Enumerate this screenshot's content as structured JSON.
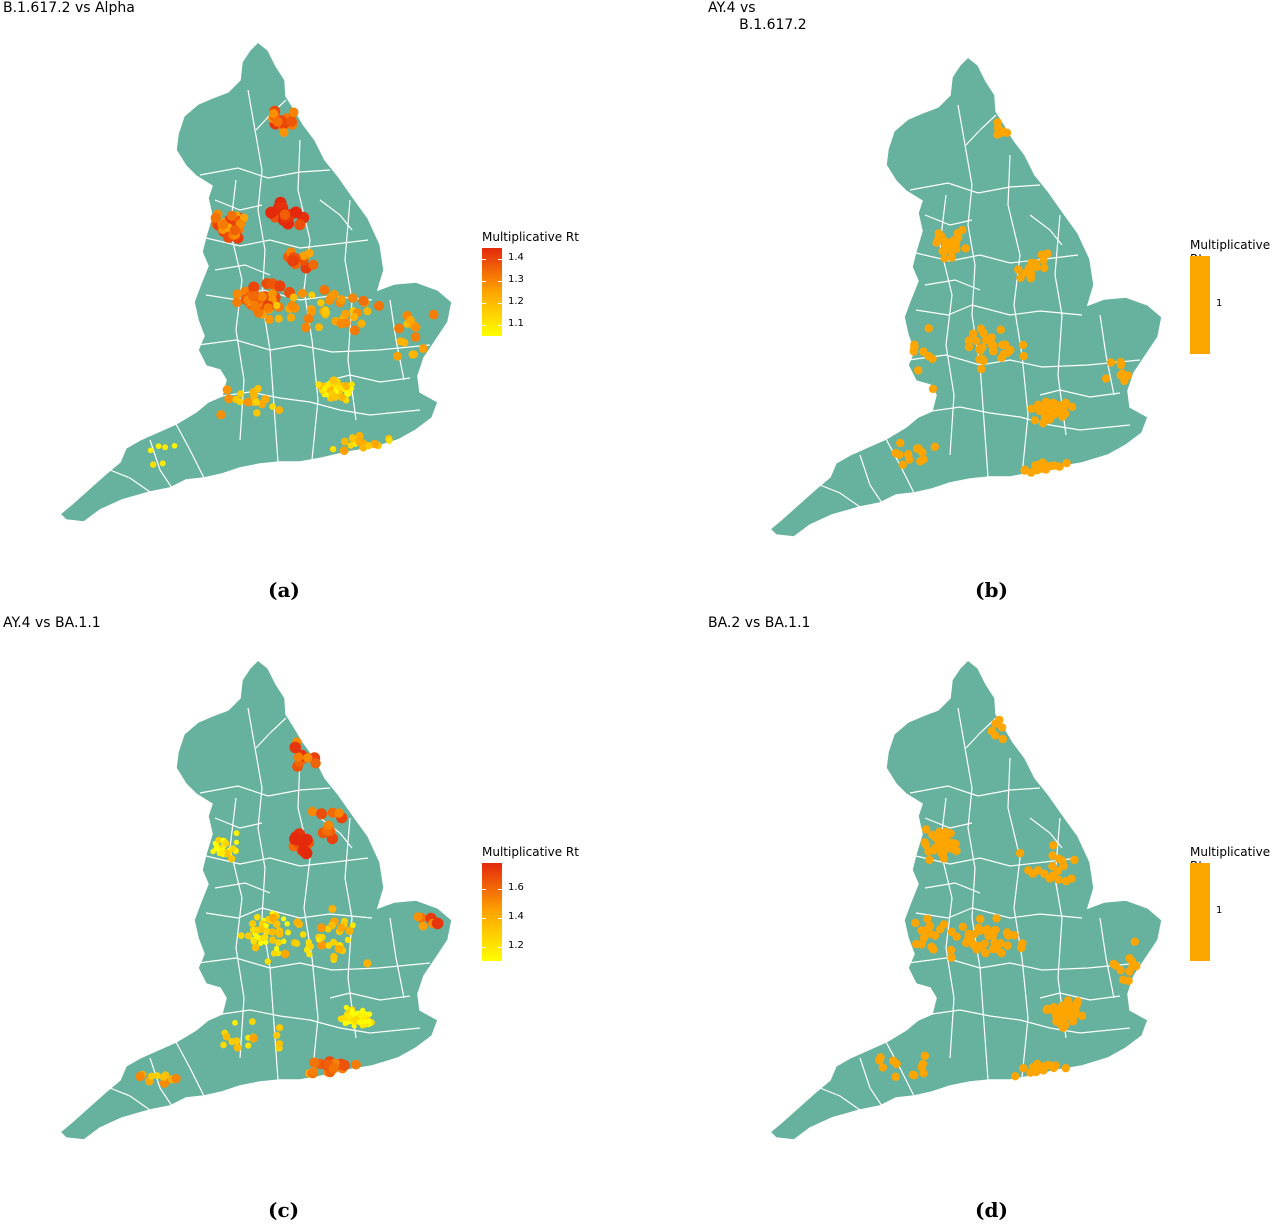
{
  "colors": {
    "land": "#66b29e",
    "border": "#ffffff",
    "low": "#ffff00",
    "mid": "#ffa500",
    "high": "#e4290d",
    "constant": "#ffa500"
  },
  "panels": [
    {
      "id": "a",
      "title": "B.1.617.2 vs Alpha",
      "caption": "(a)",
      "legend": {
        "title": "Multiplicative Rt",
        "type": "gradient",
        "ticks": [
          "1.4",
          "1.3",
          "1.2",
          "1.1"
        ],
        "range": [
          1.05,
          1.45
        ]
      }
    },
    {
      "id": "b",
      "title": "AY.4 vs\n       B.1.617.2",
      "caption": "(b)",
      "legend": {
        "title": "Multiplicative Rt",
        "type": "constant",
        "ticks": [
          "1"
        ]
      }
    },
    {
      "id": "c",
      "title": "AY.4 vs BA.1.1",
      "caption": "(c)",
      "legend": {
        "title": "Multiplicative Rt",
        "type": "gradient",
        "ticks": [
          "1.6",
          "1.4",
          "1.2"
        ],
        "range": [
          1.1,
          1.78
        ]
      }
    },
    {
      "id": "d",
      "title": "BA.2 vs BA.1.1",
      "caption": "(d)",
      "legend": {
        "title": "Multiplicative Rt",
        "type": "constant",
        "ticks": [
          "1"
        ]
      }
    }
  ]
}
